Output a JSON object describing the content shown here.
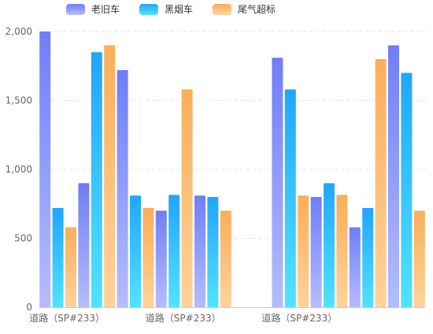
{
  "colors": {
    "老旧车": [
      "#6f7ef8",
      "#b5bdfd"
    ],
    "黑烟车": [
      "#21a6fb",
      "#52e3ff"
    ],
    "尾气超标": [
      "#fbae5a",
      "#ffd29b"
    ],
    "grid": "#e6e6e6",
    "axis": "#cccccc"
  },
  "chart_data": {
    "type": "bar",
    "title": "",
    "xlabel": "",
    "ylabel": "",
    "ylim": [
      0,
      2000
    ],
    "yticks": [
      "0",
      "500",
      "1,000",
      "1,500",
      "2,000"
    ],
    "ytick_values": [
      0,
      500,
      1000,
      1500,
      2000
    ],
    "grid": true,
    "legend_position": "top-left",
    "categories": [
      "道路（SP#233）",
      "道路（SP#233）",
      "道路（SP#233）",
      "道路（SP#233）",
      "道路（SP#233）",
      "道路（SP#233）",
      "道路（SP#233）",
      "道路（SP#233）",
      "道路（SP#233）",
      "道路（SP#233）",
      "道路（SP#233）",
      "道路（SP#233）",
      "道路（SP#233）",
      "道路（SP#233）",
      "道路（SP#233）",
      "道路（SP#233）",
      "道路（SP#233）",
      "道路（SP#233）",
      "道路（SP#233）",
      "道路（SP#233）",
      "道路（SP#233）",
      "道路（SP#233）",
      "道路（SP#233）",
      "道路（SP#233）",
      "道路（SP#233）",
      "道路（SP#233）",
      "道路（SP#233）",
      "道路（SP#233）",
      "道路（SP#233）",
      "道路（SP#233）"
    ],
    "visible_tick_labels": [
      {
        "index": 0,
        "label": "道路（SP#233）"
      },
      {
        "index": 9,
        "label": "道路（SP#233）"
      },
      {
        "index": 18,
        "label": "道路（SP#233）"
      }
    ],
    "series": [
      {
        "name": "老旧车",
        "values": [
          2000,
          0,
          0,
          900,
          0,
          0,
          1720,
          0,
          0,
          700,
          0,
          0,
          810,
          0,
          0,
          0,
          0,
          0,
          1810,
          0,
          0,
          800,
          0,
          0,
          580,
          0,
          0,
          1900,
          0,
          0
        ]
      },
      {
        "name": "黑烟车",
        "values": [
          0,
          720,
          0,
          0,
          1850,
          0,
          0,
          810,
          0,
          0,
          815,
          0,
          0,
          800,
          0,
          0,
          0,
          0,
          0,
          1580,
          0,
          0,
          900,
          0,
          0,
          720,
          0,
          0,
          1700,
          0
        ]
      },
      {
        "name": "尾气超标",
        "values": [
          0,
          0,
          580,
          0,
          0,
          1900,
          0,
          0,
          720,
          0,
          0,
          1580,
          0,
          0,
          700,
          0,
          0,
          0,
          0,
          0,
          810,
          0,
          0,
          815,
          0,
          0,
          1800,
          0,
          0,
          700
        ]
      }
    ]
  }
}
